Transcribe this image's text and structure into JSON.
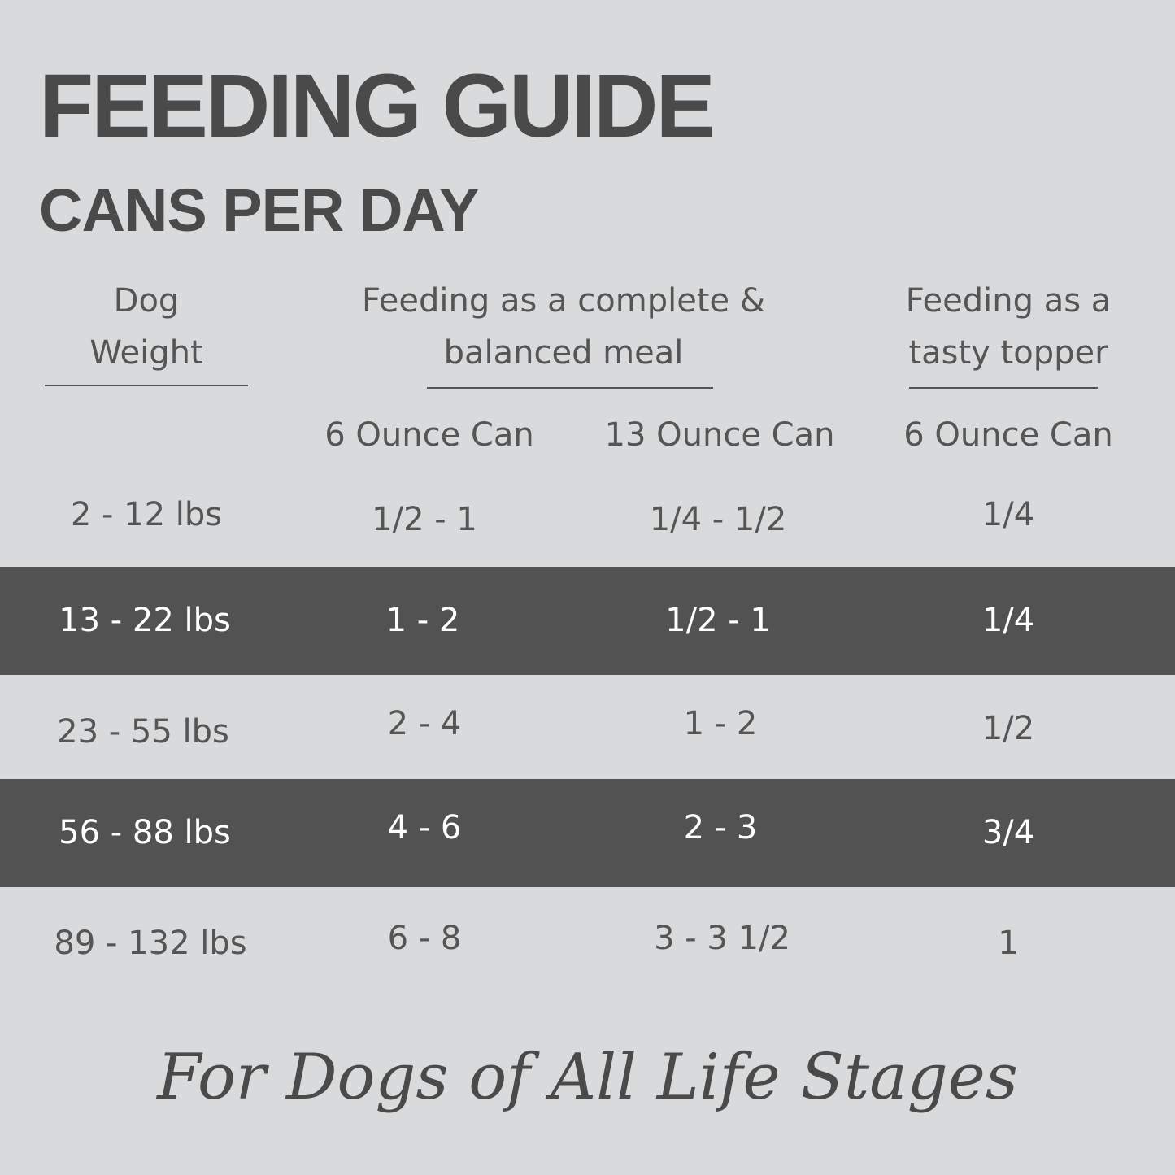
{
  "header": {
    "title": "FEEDING GUIDE",
    "subtitle": "CANS PER DAY"
  },
  "columns": {
    "weight": {
      "line1": "Dog",
      "line2": "Weight"
    },
    "complete": {
      "line1": "Feeding as a complete &",
      "line2": "balanced meal"
    },
    "topper": {
      "line1": "Feeding as a",
      "line2": "tasty topper"
    },
    "sub": [
      "6 Ounce Can",
      "13 Ounce Can",
      "6 Ounce Can"
    ]
  },
  "rows": [
    {
      "weight": "2 - 12 lbs",
      "c6": "1/2 - 1",
      "c13": "1/4 - 1/2",
      "topper": "1/4",
      "highlight": false
    },
    {
      "weight": "13 - 22 lbs",
      "c6": "1 - 2",
      "c13": "1/2 - 1",
      "topper": "1/4",
      "highlight": true
    },
    {
      "weight": "23 - 55 lbs",
      "c6": "2 - 4",
      "c13": "1 - 2",
      "topper": "1/2",
      "highlight": false
    },
    {
      "weight": "56 - 88 lbs",
      "c6": "4 - 6",
      "c13": "2 - 3",
      "topper": "3/4",
      "highlight": true
    },
    {
      "weight": "89 - 132 lbs",
      "c6": "6 - 8",
      "c13": "3 - 3 1/2",
      "topper": "1",
      "highlight": false
    }
  ],
  "footer": "For Dogs of All Life Stages",
  "colors": {
    "background": "#d9dadb",
    "highlight_row": "#525252",
    "text": "#4b4b4b"
  }
}
